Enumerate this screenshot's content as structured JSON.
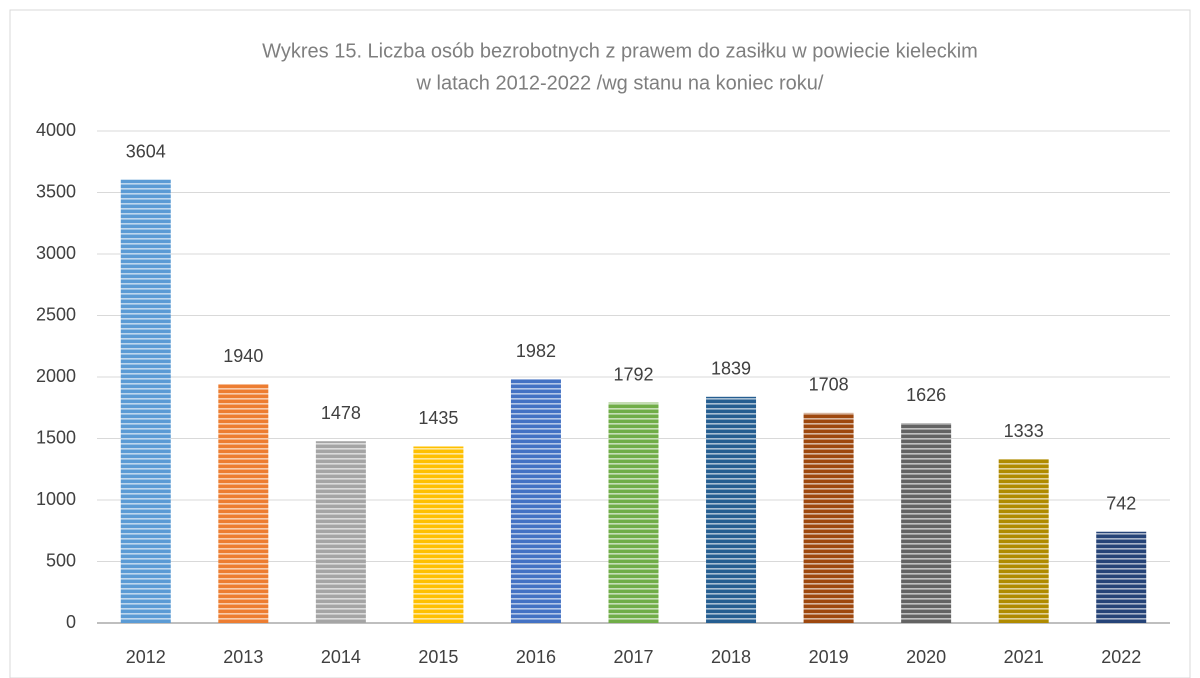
{
  "chart_data": {
    "type": "bar",
    "title": [
      "Wykres 15. Liczba osób bezrobotnych z prawem do zasiłku w powiecie kieleckim",
      "w latach 2012-2022 /wg stanu na koniec roku/"
    ],
    "categories": [
      "2012",
      "2013",
      "2014",
      "2015",
      "2016",
      "2017",
      "2018",
      "2019",
      "2020",
      "2021",
      "2022"
    ],
    "values": [
      3604,
      1940,
      1478,
      1435,
      1982,
      1792,
      1839,
      1708,
      1626,
      1333,
      742
    ],
    "colors": [
      "#5b9bd5",
      "#ed7d31",
      "#a5a5a5",
      "#ffc000",
      "#4472c4",
      "#70ad47",
      "#255e91",
      "#9e480e",
      "#636363",
      "#b08b00",
      "#264478"
    ],
    "ylim": [
      0,
      4000
    ],
    "yticks": [
      0,
      500,
      1000,
      1500,
      2000,
      2500,
      3000,
      3500,
      4000
    ],
    "grid": true
  }
}
